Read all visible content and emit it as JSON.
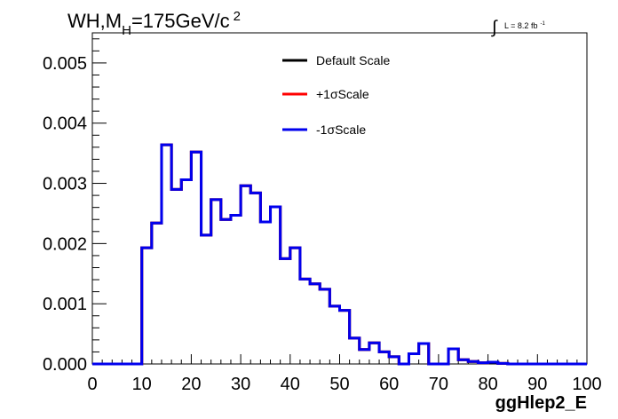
{
  "chart_data": {
    "type": "line",
    "title": {
      "prefix": "WH,M",
      "subscript": "H",
      "main": "=175GeV/c",
      "superscript": "2"
    },
    "luminosity": {
      "integral_symbol": "∫",
      "text": "L = 8.2 fb",
      "superscript": "-1"
    },
    "xlabel": "ggHlep2_E",
    "ylabel": "",
    "xlim": [
      0,
      100
    ],
    "ylim": [
      0,
      0.0055
    ],
    "x_ticks": [
      "0",
      "10",
      "20",
      "30",
      "40",
      "50",
      "60",
      "70",
      "80",
      "90",
      "100"
    ],
    "y_ticks": [
      "0.000",
      "0.001",
      "0.002",
      "0.003",
      "0.004",
      "0.005"
    ],
    "legend_placement": "top-center",
    "bin_edges": [
      0,
      10,
      12,
      14,
      16,
      18,
      20,
      22,
      24,
      26,
      28,
      30,
      32,
      34,
      36,
      38,
      40,
      42,
      44,
      46,
      48,
      50,
      52,
      54,
      56,
      58,
      60,
      62,
      64,
      66,
      68,
      70,
      72,
      74,
      76,
      78,
      80,
      82,
      84,
      100
    ],
    "series": [
      {
        "name": "Default Scale",
        "color": "#000000",
        "values": [
          0,
          0.00193,
          0.00234,
          0.00364,
          0.0029,
          0.00306,
          0.00352,
          0.00214,
          0.00273,
          0.0024,
          0.00247,
          0.00296,
          0.00284,
          0.00236,
          0.00261,
          0.00175,
          0.00193,
          0.00141,
          0.00133,
          0.00124,
          0.00096,
          0.00089,
          0.00043,
          0.00024,
          0.00035,
          0.0002,
          0.00012,
          0.0,
          0.00017,
          0.00034,
          0.0,
          0.0,
          0.00025,
          7e-05,
          4e-05,
          2e-05,
          3e-05,
          1e-05,
          0.0
        ]
      },
      {
        "name": "+1σScale",
        "color": "#ff0000",
        "values": [
          0,
          0.00193,
          0.00234,
          0.00364,
          0.0029,
          0.00306,
          0.00352,
          0.00214,
          0.00273,
          0.0024,
          0.00247,
          0.00296,
          0.00284,
          0.00236,
          0.00261,
          0.00175,
          0.00193,
          0.00141,
          0.00133,
          0.00124,
          0.00096,
          0.00089,
          0.00043,
          0.00024,
          0.00035,
          0.0002,
          0.00012,
          0.0,
          0.00017,
          0.00034,
          0.0,
          0.0,
          0.00025,
          7e-05,
          4e-05,
          2e-05,
          3e-05,
          1e-05,
          0.0
        ]
      },
      {
        "name": "-1σScale",
        "color": "#0000ee",
        "values": [
          0,
          0.00193,
          0.00234,
          0.00364,
          0.0029,
          0.00306,
          0.00352,
          0.00214,
          0.00273,
          0.0024,
          0.00247,
          0.00296,
          0.00284,
          0.00236,
          0.00261,
          0.00175,
          0.00193,
          0.00141,
          0.00133,
          0.00124,
          0.00096,
          0.00089,
          0.00043,
          0.00024,
          0.00035,
          0.0002,
          0.00012,
          0.0,
          0.00017,
          0.00034,
          0.0,
          0.0,
          0.00025,
          7e-05,
          4e-05,
          2e-05,
          3e-05,
          1e-05,
          0.0
        ]
      }
    ]
  }
}
